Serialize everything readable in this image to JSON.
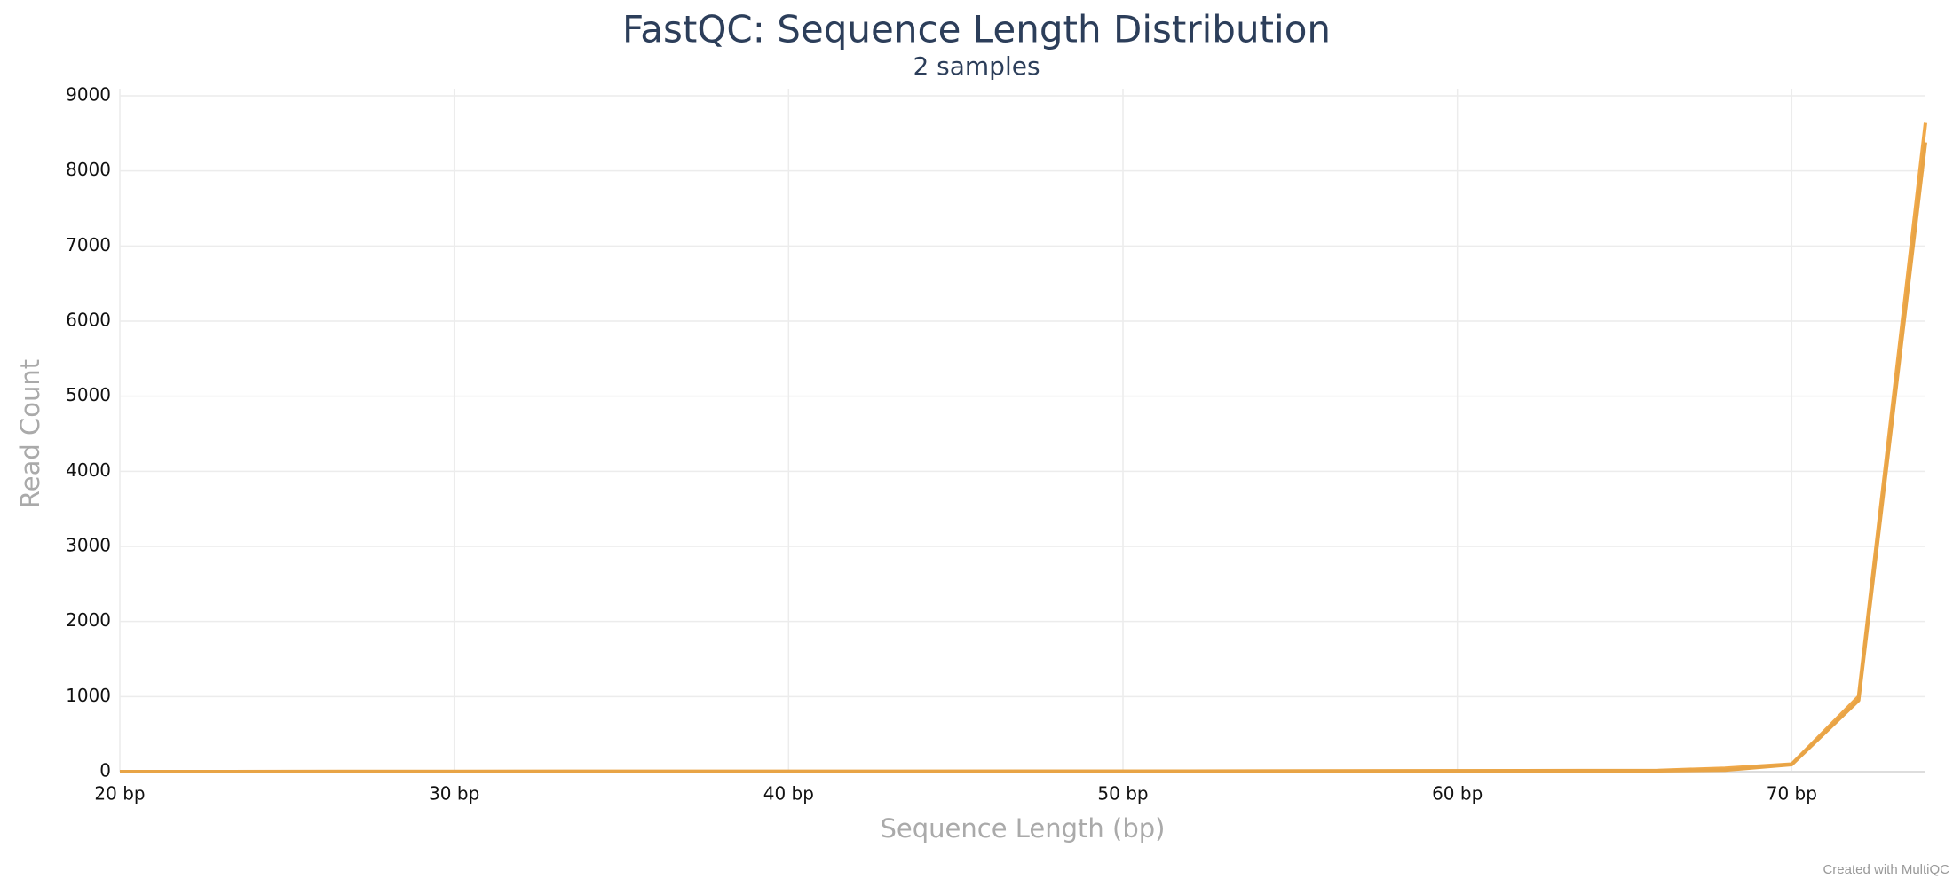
{
  "chart_data": {
    "type": "line",
    "title": "FastQC: Sequence Length Distribution",
    "subtitle": "2 samples",
    "x_label": "Sequence Length (bp)",
    "y_label": "Read Count",
    "credit": "Created with MultiQC",
    "xlim": [
      20,
      74
    ],
    "ylim": [
      0,
      9000
    ],
    "xticks": [
      {
        "value": 20,
        "label": "20 bp"
      },
      {
        "value": 30,
        "label": "30 bp"
      },
      {
        "value": 40,
        "label": "40 bp"
      },
      {
        "value": 50,
        "label": "50 bp"
      },
      {
        "value": 60,
        "label": "60 bp"
      },
      {
        "value": 70,
        "label": "70 bp"
      }
    ],
    "yticks": [
      0,
      1000,
      2000,
      3000,
      4000,
      5000,
      6000,
      7000,
      8000,
      9000
    ],
    "grid": true,
    "series": [
      {
        "color": "#f0a848",
        "x": [
          20,
          30,
          40,
          50,
          55,
          60,
          66,
          68,
          70,
          72,
          74
        ],
        "values": [
          0,
          2,
          3,
          5,
          8,
          10,
          15,
          45,
          100,
          1000,
          8640
        ]
      },
      {
        "color": "#e8a446",
        "x": [
          20,
          30,
          40,
          50,
          55,
          60,
          66,
          68,
          70,
          72,
          74
        ],
        "values": [
          0,
          2,
          3,
          5,
          7,
          9,
          12,
          20,
          95,
          950,
          8380
        ]
      }
    ]
  }
}
